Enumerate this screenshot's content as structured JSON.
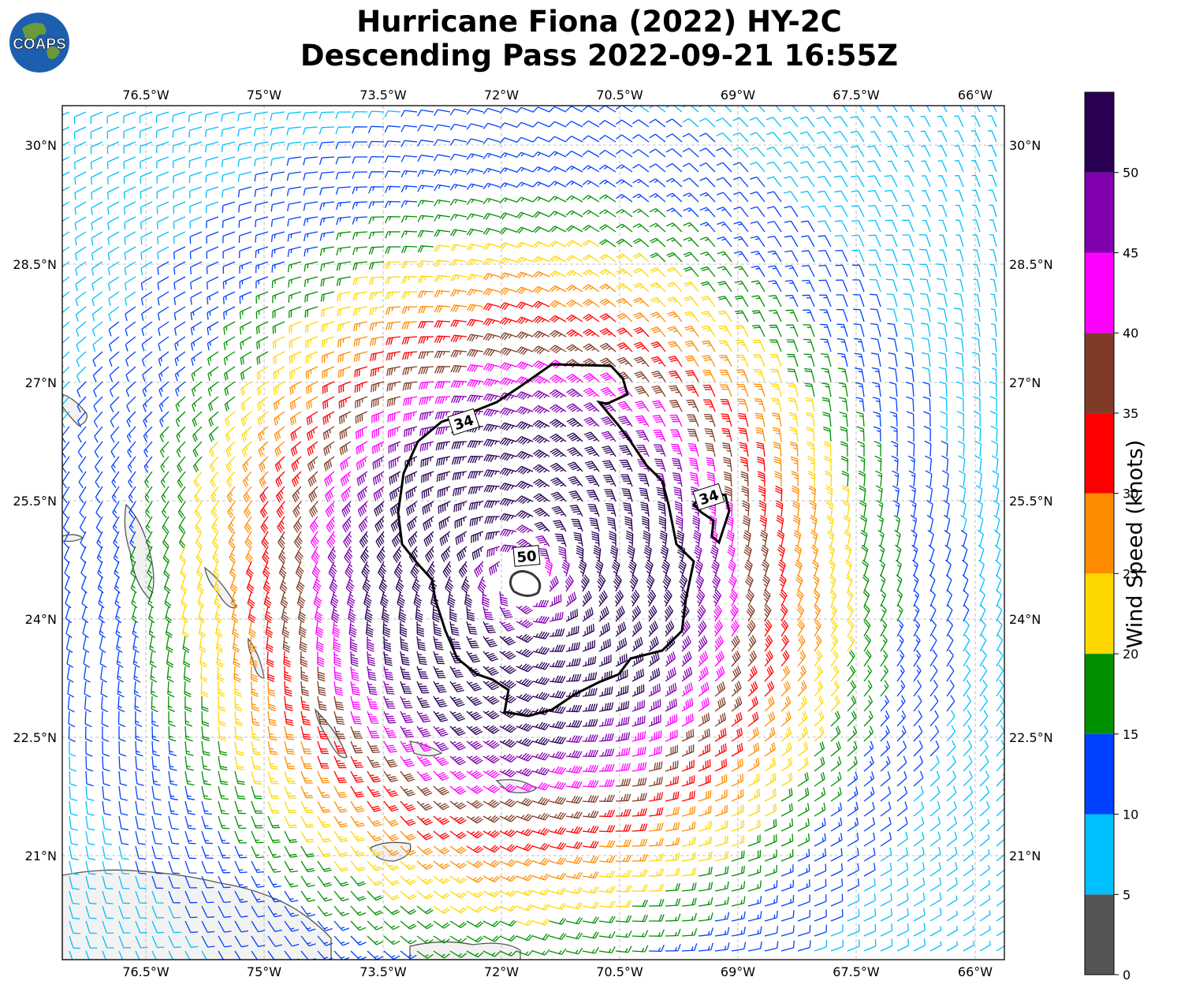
{
  "title": {
    "line1": "Hurricane Fiona (2022) HY-2C",
    "line2": "Descending Pass 2022-09-21 16:55Z"
  },
  "logo": {
    "text": "COAPS",
    "ocean_color": "#1c5fb0",
    "land_color": "#6b9a3b"
  },
  "map": {
    "lon_ticks": [
      "76.5°W",
      "75°W",
      "73.5°W",
      "72°W",
      "70.5°W",
      "69°W",
      "67.5°W",
      "66°W"
    ],
    "lat_ticks": [
      "30°N",
      "28.5°N",
      "27°N",
      "25.5°N",
      "24°N",
      "22.5°N",
      "21°N"
    ],
    "contour_labels": [
      "34",
      "34",
      "50"
    ],
    "storm_center": {
      "lon": -71.9,
      "lat": 24.6
    }
  },
  "colorbar": {
    "label": "Wind Speed (knots)",
    "ticks": [
      "0",
      "5",
      "10",
      "15",
      "20",
      "25",
      "30",
      "35",
      "40",
      "45",
      "50"
    ],
    "bins": [
      {
        "min": 0,
        "max": 5,
        "color": "#555555"
      },
      {
        "min": 5,
        "max": 10,
        "color": "#00bfff"
      },
      {
        "min": 10,
        "max": 15,
        "color": "#0040ff"
      },
      {
        "min": 15,
        "max": 20,
        "color": "#009000"
      },
      {
        "min": 20,
        "max": 25,
        "color": "#ffd700"
      },
      {
        "min": 25,
        "max": 30,
        "color": "#ff8c00"
      },
      {
        "min": 30,
        "max": 35,
        "color": "#ff0000"
      },
      {
        "min": 35,
        "max": 40,
        "color": "#7f3b26"
      },
      {
        "min": 40,
        "max": 45,
        "color": "#ff00ff"
      },
      {
        "min": 45,
        "max": 50,
        "color": "#8000b0"
      },
      {
        "min": 50,
        "max": 55,
        "color": "#2a0055"
      }
    ]
  }
}
